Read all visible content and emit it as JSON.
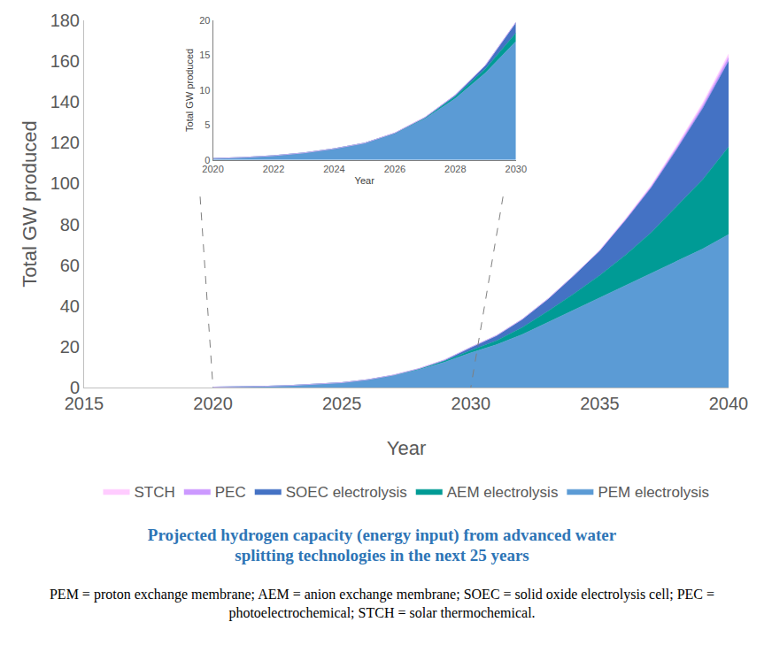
{
  "chart_data": [
    {
      "type": "area",
      "stacked": true,
      "title": "Projected hydrogen capacity (energy input) from advanced water splitting technologies in the next 25 years",
      "annotations": [
        "PEM = proton exchange membrane; AEM = anion exchange membrane; SOEC = solid oxide electrolysis cell; PEC = photoelectrochemical; STCH = solar thermochemical."
      ],
      "x_label": "Year",
      "y_label": "Total GW produced",
      "x": [
        2020,
        2021,
        2022,
        2023,
        2024,
        2025,
        2026,
        2027,
        2028,
        2029,
        2030,
        2031,
        2032,
        2033,
        2034,
        2035,
        2036,
        2037,
        2038,
        2039,
        2040
      ],
      "xlim": [
        2015,
        2040
      ],
      "xticks": [
        2015,
        2020,
        2025,
        2030,
        2035,
        2040
      ],
      "ylim": [
        0,
        180
      ],
      "yticks": [
        0,
        20,
        40,
        60,
        80,
        100,
        120,
        140,
        160,
        180
      ],
      "grid": false,
      "legend": "bottom",
      "series": [
        {
          "name": "PEM electrolysis",
          "color": "#5b9bd5",
          "values": [
            0.2,
            0.35,
            0.6,
            1.0,
            1.6,
            2.4,
            3.8,
            5.9,
            8.8,
            12.5,
            17.0,
            21,
            26,
            32,
            38,
            44,
            50,
            56,
            62,
            68,
            75
          ]
        },
        {
          "name": "AEM electrolysis",
          "color": "#009b95",
          "values": [
            0,
            0,
            0,
            0,
            0,
            0,
            0,
            0.1,
            0.3,
            0.6,
            1.2,
            2,
            3.5,
            5.5,
            8,
            11,
            15,
            20,
            27,
            34,
            43
          ]
        },
        {
          "name": "SOEC electrolysis",
          "color": "#4472c4",
          "values": [
            0,
            0,
            0,
            0,
            0,
            0,
            0.05,
            0.1,
            0.2,
            0.5,
            1.5,
            2.5,
            4,
            6,
            9,
            12,
            17,
            22,
            28,
            35,
            42
          ]
        },
        {
          "name": "PEC",
          "color": "#cc99ff",
          "values": [
            0,
            0,
            0,
            0,
            0,
            0,
            0,
            0,
            0,
            0,
            0,
            0,
            0,
            0,
            0,
            0.2,
            0.4,
            0.7,
            1.0,
            1.4,
            2.0
          ]
        },
        {
          "name": "STCH",
          "color": "#ffccff",
          "values": [
            0,
            0,
            0,
            0,
            0,
            0,
            0,
            0,
            0,
            0,
            0,
            0,
            0,
            0,
            0,
            0.1,
            0.3,
            0.5,
            0.8,
            1.1,
            1.5
          ]
        }
      ]
    },
    {
      "type": "area",
      "stacked": true,
      "x_label": "Year",
      "y_label": "Total GW produced",
      "x": [
        2020,
        2021,
        2022,
        2023,
        2024,
        2025,
        2026,
        2027,
        2028,
        2029,
        2030
      ],
      "xlim": [
        2020,
        2030
      ],
      "xticks": [
        2020,
        2022,
        2024,
        2026,
        2028,
        2030
      ],
      "ylim": [
        0,
        20
      ],
      "yticks": [
        0,
        5,
        10,
        15,
        20
      ],
      "grid": false,
      "series": [
        {
          "name": "PEM electrolysis",
          "color": "#5b9bd5",
          "values": [
            0.2,
            0.35,
            0.6,
            1.0,
            1.6,
            2.4,
            3.8,
            5.9,
            8.8,
            12.5,
            17.0
          ]
        },
        {
          "name": "AEM electrolysis",
          "color": "#009b95",
          "values": [
            0,
            0,
            0,
            0,
            0,
            0,
            0,
            0.1,
            0.3,
            0.6,
            1.2
          ]
        },
        {
          "name": "SOEC electrolysis",
          "color": "#4472c4",
          "values": [
            0,
            0,
            0,
            0,
            0,
            0,
            0.05,
            0.1,
            0.2,
            0.5,
            1.5
          ]
        },
        {
          "name": "PEC",
          "color": "#cc99ff",
          "values": [
            0,
            0,
            0,
            0,
            0,
            0,
            0,
            0,
            0,
            0,
            0
          ]
        },
        {
          "name": "STCH",
          "color": "#ffccff",
          "values": [
            0,
            0,
            0,
            0,
            0,
            0,
            0,
            0,
            0,
            0,
            0
          ]
        }
      ]
    }
  ]
}
